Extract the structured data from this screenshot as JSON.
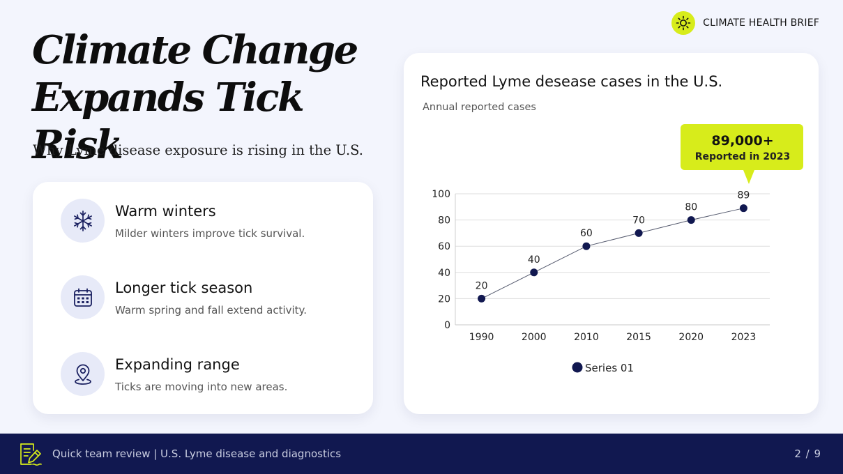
{
  "brand": {
    "label": "CLIMATE HEALTH BRIEF",
    "icon": "sun-icon",
    "accent": "#d7ec1b"
  },
  "headline": {
    "title_line1": "Climate Change",
    "title_line2": "Expands Tick Risk",
    "subtitle": "Why Lyme disease exposure is rising in the U.S."
  },
  "factors": [
    {
      "title": "Warm winters",
      "description": "Milder winters improve tick survival.",
      "icon": "snowflake-icon"
    },
    {
      "title": "Longer tick season",
      "description": "Warm spring and fall extend activity.",
      "icon": "calendar-icon"
    },
    {
      "title": "Expanding range",
      "description": "Ticks are moving into new areas.",
      "icon": "location-pin-icon"
    }
  ],
  "callout": {
    "value": "89,000+",
    "label": "Reported in 2023"
  },
  "chart_data": {
    "type": "line",
    "title": "Reported Lyme desease cases in the U.S.",
    "subtitle": "Annual reported cases",
    "categories": [
      "1990",
      "2000",
      "2010",
      "2015",
      "2020",
      "2023"
    ],
    "series": [
      {
        "name": "Series 01",
        "values": [
          20,
          40,
          60,
          70,
          80,
          89
        ],
        "color": "#111850"
      }
    ],
    "ylim": [
      0,
      100
    ],
    "yticks": [
      "0",
      "20",
      "40",
      "60",
      "80",
      "100"
    ],
    "grid": true,
    "legend": "bottom",
    "data_labels": true
  },
  "footer": {
    "text": "Quick team review | U.S. Lyme disease and diagnostics",
    "page": "2 / 9",
    "icon": "document-edit-icon"
  },
  "colors": {
    "navy": "#111850",
    "accent": "#d7ec1b",
    "background": "#f3f5fd"
  }
}
